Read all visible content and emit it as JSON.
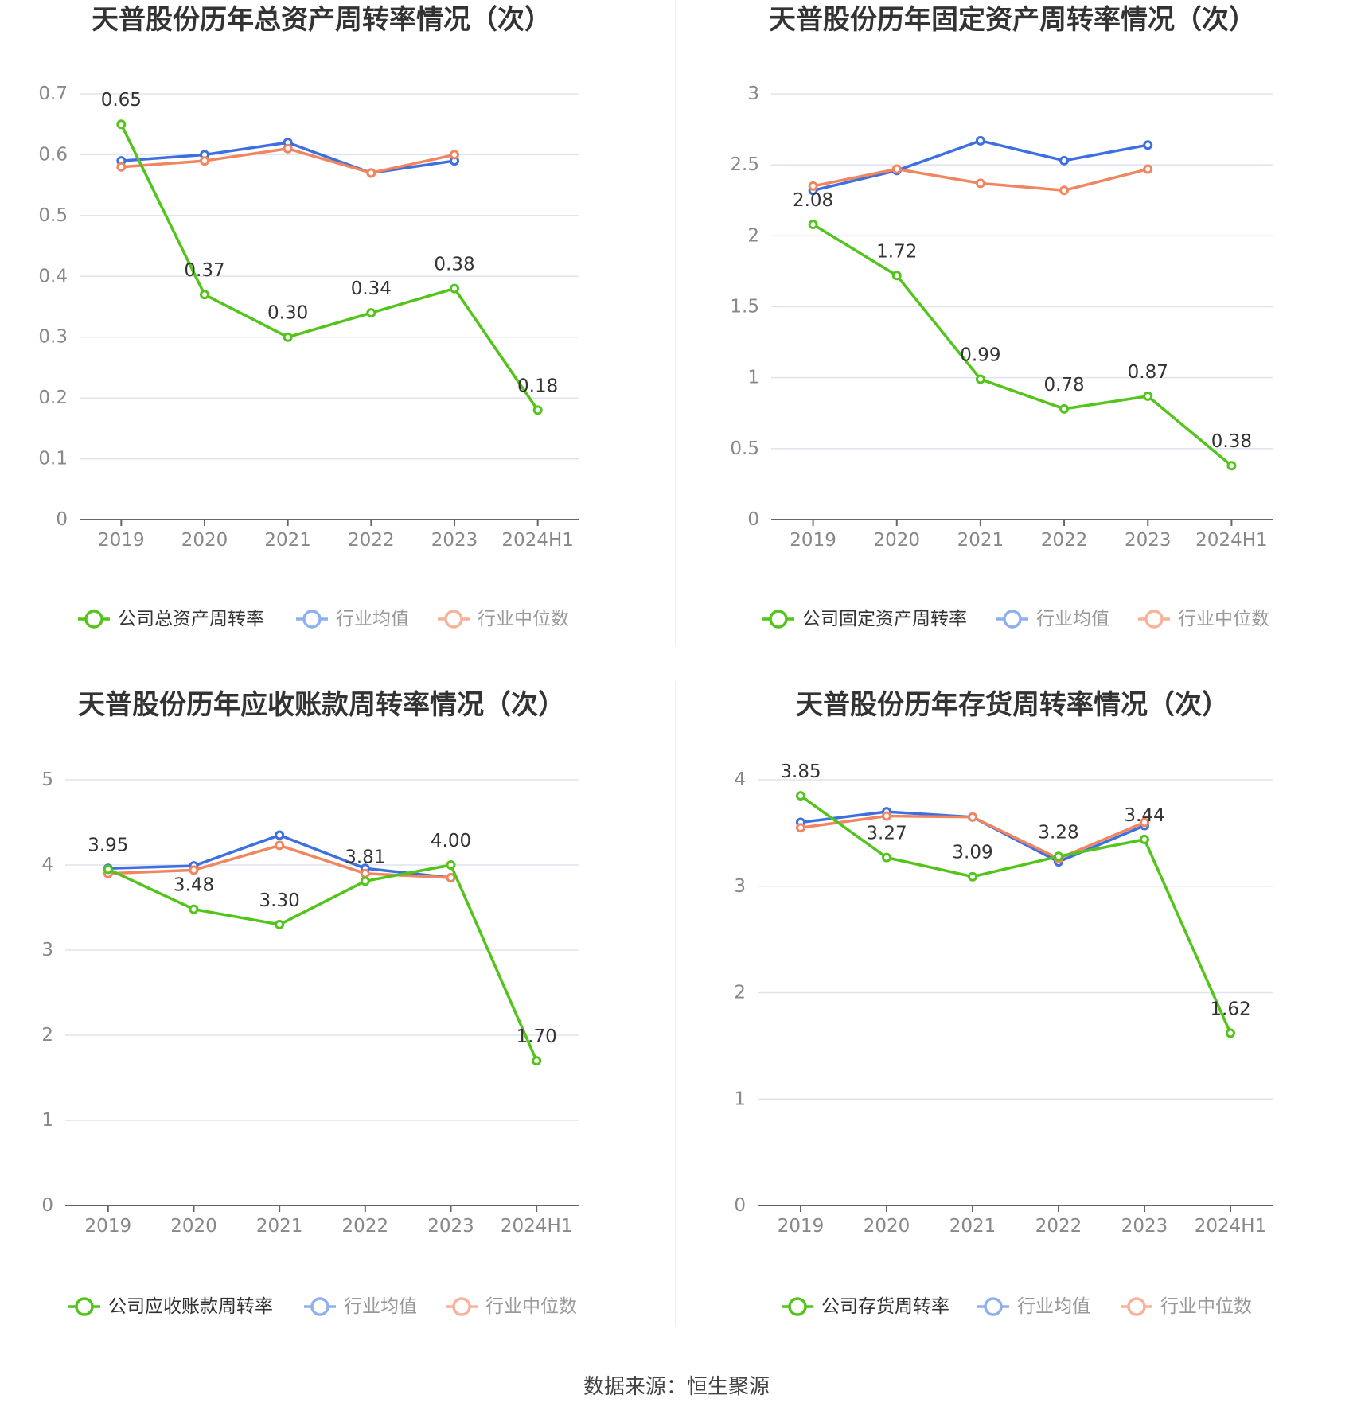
{
  "colors": {
    "company": "#52c41a",
    "industry_mean": "#3d6fe0",
    "industry_median": "#f0855f",
    "legend_mean": "#8fb0ef",
    "legend_median": "#f6b29a",
    "grid": "#dfe3ee",
    "axis": "#666666",
    "tick": "#888888",
    "title": "#333333"
  },
  "footer": {
    "source": "数据来源：恒生聚源"
  },
  "chart_data": [
    {
      "type": "line",
      "title": "天普股份历年总资产周转率情况（次）",
      "categories": [
        "2019",
        "2020",
        "2021",
        "2022",
        "2023",
        "2024H1"
      ],
      "ylim": [
        0,
        0.7
      ],
      "yticks": [
        0,
        0.1,
        0.2,
        0.3,
        0.4,
        0.5,
        0.6,
        0.7
      ],
      "ytick_labels": [
        "0",
        "0.1",
        "0.2",
        "0.3",
        "0.4",
        "0.5",
        "0.6",
        "0.7"
      ],
      "grid": true,
      "legend_position": "bottom",
      "series": [
        {
          "name": "公司总资产周转率",
          "role": "company",
          "values": [
            0.65,
            0.37,
            0.3,
            0.34,
            0.38,
            0.18
          ],
          "labels": [
            "0.65",
            "0.37",
            "0.30",
            "0.34",
            "0.38",
            "0.18"
          ]
        },
        {
          "name": "行业均值",
          "role": "industry_mean",
          "values": [
            0.59,
            0.6,
            0.62,
            0.57,
            0.59,
            null
          ]
        },
        {
          "name": "行业中位数",
          "role": "industry_median",
          "values": [
            0.58,
            0.59,
            0.61,
            0.57,
            0.6,
            null
          ]
        }
      ]
    },
    {
      "type": "line",
      "title": "天普股份历年固定资产周转率情况（次）",
      "categories": [
        "2019",
        "2020",
        "2021",
        "2022",
        "2023",
        "2024H1"
      ],
      "ylim": [
        0,
        3
      ],
      "yticks": [
        0,
        0.5,
        1,
        1.5,
        2,
        2.5,
        3
      ],
      "ytick_labels": [
        "0",
        "0.5",
        "1",
        "1.5",
        "2",
        "2.5",
        "3"
      ],
      "grid": true,
      "legend_position": "bottom",
      "series": [
        {
          "name": "公司固定资产周转率",
          "role": "company",
          "values": [
            2.08,
            1.72,
            0.99,
            0.78,
            0.87,
            0.38
          ],
          "labels": [
            "2.08",
            "1.72",
            "0.99",
            "0.78",
            "0.87",
            "0.38"
          ]
        },
        {
          "name": "行业均值",
          "role": "industry_mean",
          "values": [
            2.32,
            2.46,
            2.67,
            2.53,
            2.64,
            null
          ]
        },
        {
          "name": "行业中位数",
          "role": "industry_median",
          "values": [
            2.35,
            2.47,
            2.37,
            2.32,
            2.47,
            null
          ]
        }
      ]
    },
    {
      "type": "line",
      "title": "天普股份历年应收账款周转率情况（次）",
      "categories": [
        "2019",
        "2020",
        "2021",
        "2022",
        "2023",
        "2024H1"
      ],
      "ylim": [
        0,
        5
      ],
      "yticks": [
        0,
        1,
        2,
        3,
        4,
        5
      ],
      "ytick_labels": [
        "0",
        "1",
        "2",
        "3",
        "4",
        "5"
      ],
      "grid": true,
      "legend_position": "bottom",
      "series": [
        {
          "name": "公司应收账款周转率",
          "role": "company",
          "values": [
            3.95,
            3.48,
            3.3,
            3.81,
            4.0,
            1.7
          ],
          "labels": [
            "3.95",
            "3.48",
            "3.30",
            "3.81",
            "4.00",
            "1.70"
          ]
        },
        {
          "name": "行业均值",
          "role": "industry_mean",
          "values": [
            3.96,
            3.99,
            4.35,
            3.96,
            3.85,
            null
          ]
        },
        {
          "name": "行业中位数",
          "role": "industry_median",
          "values": [
            3.9,
            3.94,
            4.23,
            3.9,
            3.85,
            null
          ]
        }
      ]
    },
    {
      "type": "line",
      "title": "天普股份历年存货周转率情况（次）",
      "categories": [
        "2019",
        "2020",
        "2021",
        "2022",
        "2023",
        "2024H1"
      ],
      "ylim": [
        0,
        4
      ],
      "yticks": [
        0,
        1,
        2,
        3,
        4
      ],
      "ytick_labels": [
        "0",
        "1",
        "2",
        "3",
        "4"
      ],
      "grid": true,
      "legend_position": "bottom",
      "series": [
        {
          "name": "公司存货周转率",
          "role": "company",
          "values": [
            3.85,
            3.27,
            3.09,
            3.28,
            3.44,
            1.62
          ],
          "labels": [
            "3.85",
            "3.27",
            "3.09",
            "3.28",
            "3.44",
            "1.62"
          ]
        },
        {
          "name": "行业均值",
          "role": "industry_mean",
          "values": [
            3.6,
            3.7,
            3.65,
            3.23,
            3.57,
            null
          ]
        },
        {
          "name": "行业中位数",
          "role": "industry_median",
          "values": [
            3.55,
            3.66,
            3.65,
            3.26,
            3.6,
            null
          ]
        }
      ]
    }
  ]
}
